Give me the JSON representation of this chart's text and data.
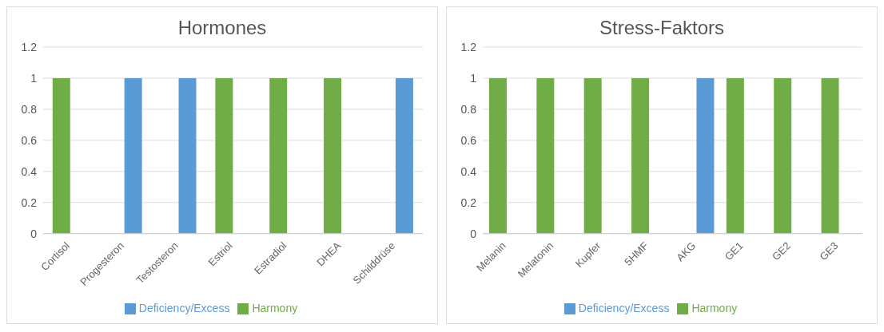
{
  "chart_data": [
    {
      "type": "bar",
      "title": "Hormones",
      "categories": [
        "Cortisol",
        "Progesteron",
        "Testosteron",
        "Estriol",
        "Estradiol",
        "DHEA",
        "Schilddrüse"
      ],
      "series": [
        {
          "name": "Harmony",
          "color": "#70ad47",
          "values": [
            1,
            null,
            null,
            1,
            1,
            1,
            null
          ]
        },
        {
          "name": "Deficiency/Excess",
          "color": "#5b9bd5",
          "values": [
            null,
            1,
            1,
            null,
            null,
            null,
            1
          ]
        }
      ],
      "ylim": [
        0,
        1.2
      ],
      "yticks": [
        0,
        0.2,
        0.4,
        0.6,
        0.8,
        1,
        1.2
      ],
      "grid": "y",
      "legend": "bottom"
    },
    {
      "type": "bar",
      "title": "Stress-Faktors",
      "categories": [
        "Melanin",
        "Melatonin",
        "Kupfer",
        "5HMF",
        "AKG",
        "GE1",
        "GE2",
        "GE3"
      ],
      "series": [
        {
          "name": "Harmony",
          "color": "#70ad47",
          "values": [
            1,
            1,
            1,
            1,
            null,
            1,
            1,
            1
          ]
        },
        {
          "name": "Deficiency/Excess",
          "color": "#5b9bd5",
          "values": [
            null,
            null,
            null,
            null,
            1,
            null,
            null,
            null
          ]
        }
      ],
      "ylim": [
        0,
        1.2
      ],
      "yticks": [
        0,
        0.2,
        0.4,
        0.6,
        0.8,
        1,
        1.2
      ],
      "grid": "y",
      "legend": "bottom"
    }
  ]
}
